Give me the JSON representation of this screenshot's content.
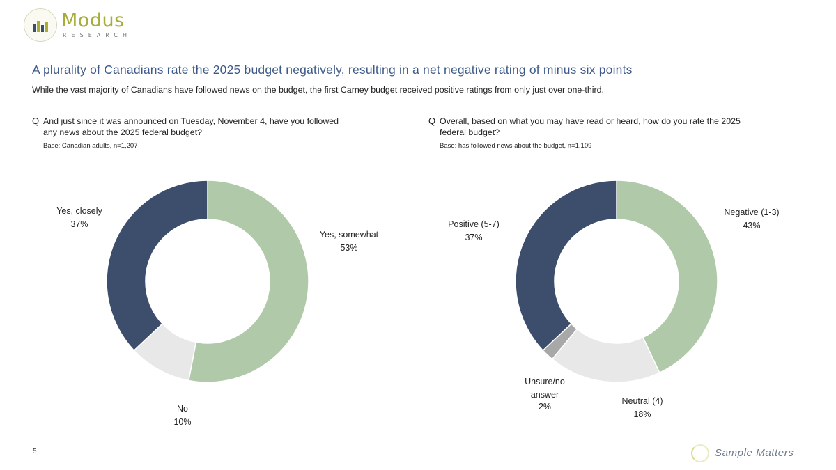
{
  "brand": {
    "logo_word": "Modus",
    "logo_sub": "RESEARCH",
    "colors": {
      "logo_green": "#a8ad3a",
      "bar_dark": "#3a4e6b",
      "bar_green": "#a8ad3a"
    }
  },
  "header": {
    "title": "A plurality of Canadians rate the 2025 budget negatively, resulting in a net negative rating of minus six points",
    "subtitle": "While the vast majority of Canadians have followed news on the budget, the first Carney budget received positive ratings from only just over one-third."
  },
  "questions": [
    {
      "marker": "Q",
      "lines": [
        "And just since it was announced on Tuesday, November 4, have you followed",
        "any news about the 2025 federal budget?"
      ],
      "base": "Base: Canadian adults,  n=1,207"
    },
    {
      "marker": "Q",
      "lines": [
        "Overall, based on what you may have read or heard, how do you rate the 2025",
        "federal budget?"
      ],
      "base": "Base: has followed news about the budget,  n=1,109"
    }
  ],
  "chart_data": [
    {
      "type": "pie",
      "donut": true,
      "categories": [
        "Yes, somewhat",
        "No",
        "Yes, closely"
      ],
      "values": [
        53,
        10,
        37
      ],
      "value_labels": [
        "53%",
        "10%",
        "37%"
      ],
      "colors": [
        "#b0c9a8",
        "#e8e8e8",
        "#3c4e6c"
      ]
    },
    {
      "type": "pie",
      "donut": true,
      "categories": [
        "Negative (1-3)",
        "Neutral (4)",
        "Unsure/no answer",
        "Positive (5-7)"
      ],
      "values": [
        43,
        18,
        2,
        37
      ],
      "value_labels": [
        "43%",
        "18%",
        "2%",
        "37%"
      ],
      "colors": [
        "#b0c9a8",
        "#e8e8e8",
        "#a8a8a8",
        "#3c4e6c"
      ]
    }
  ],
  "footer": {
    "page_number": "5",
    "tagline": "Sample Matters"
  }
}
